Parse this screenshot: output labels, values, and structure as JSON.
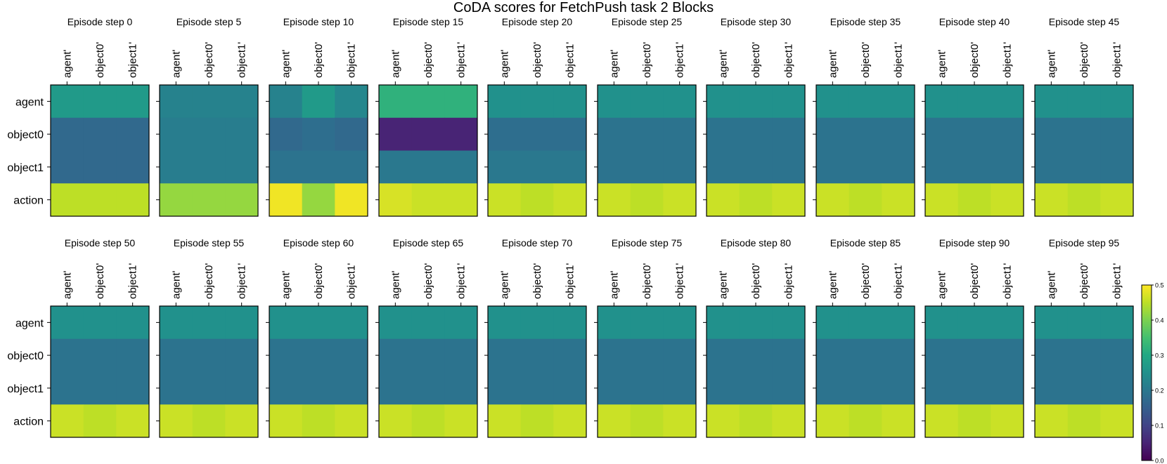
{
  "title": "CoDA scores for FetchPush task 2 Blocks",
  "colorbar": {
    "min": 0.0,
    "max": 0.5,
    "ticks": [
      "0.0",
      "0.1",
      "0.2",
      "0.3",
      "0.4",
      "0.5"
    ],
    "colormap": "viridis"
  },
  "chart_data": {
    "type": "heatmap",
    "title": "CoDA scores for FetchPush task 2 Blocks",
    "row_labels": [
      "agent",
      "object0",
      "object1",
      "action"
    ],
    "col_labels": [
      "agent'",
      "object0'",
      "object1'"
    ],
    "vmin": 0.0,
    "vmax": 0.5,
    "colormap": "viridis",
    "panels": [
      {
        "title": "Episode step 0",
        "values": [
          [
            0.27,
            0.27,
            0.27
          ],
          [
            0.17,
            0.17,
            0.17
          ],
          [
            0.17,
            0.17,
            0.17
          ],
          [
            0.45,
            0.45,
            0.45
          ]
        ]
      },
      {
        "title": "Episode step 5",
        "values": [
          [
            0.22,
            0.22,
            0.22
          ],
          [
            0.21,
            0.21,
            0.21
          ],
          [
            0.21,
            0.21,
            0.21
          ],
          [
            0.42,
            0.42,
            0.42
          ]
        ]
      },
      {
        "title": "Episode step 10",
        "values": [
          [
            0.22,
            0.27,
            0.23
          ],
          [
            0.17,
            0.18,
            0.17
          ],
          [
            0.19,
            0.19,
            0.19
          ],
          [
            0.49,
            0.42,
            0.49
          ]
        ]
      },
      {
        "title": "Episode step 15",
        "values": [
          [
            0.32,
            0.32,
            0.32
          ],
          [
            0.05,
            0.05,
            0.05
          ],
          [
            0.2,
            0.2,
            0.2
          ],
          [
            0.47,
            0.46,
            0.46
          ]
        ]
      },
      {
        "title": "Episode step 20",
        "values": [
          [
            0.25,
            0.25,
            0.25
          ],
          [
            0.18,
            0.18,
            0.18
          ],
          [
            0.2,
            0.2,
            0.2
          ],
          [
            0.46,
            0.45,
            0.46
          ]
        ]
      },
      {
        "title": "Episode step 25",
        "values": [
          [
            0.25,
            0.25,
            0.25
          ],
          [
            0.19,
            0.19,
            0.19
          ],
          [
            0.19,
            0.19,
            0.19
          ],
          [
            0.46,
            0.45,
            0.46
          ]
        ]
      },
      {
        "title": "Episode step 30",
        "values": [
          [
            0.25,
            0.25,
            0.25
          ],
          [
            0.19,
            0.19,
            0.19
          ],
          [
            0.19,
            0.19,
            0.19
          ],
          [
            0.46,
            0.45,
            0.46
          ]
        ]
      },
      {
        "title": "Episode step 35",
        "values": [
          [
            0.25,
            0.25,
            0.25
          ],
          [
            0.19,
            0.19,
            0.19
          ],
          [
            0.19,
            0.19,
            0.19
          ],
          [
            0.46,
            0.45,
            0.46
          ]
        ]
      },
      {
        "title": "Episode step 40",
        "values": [
          [
            0.25,
            0.25,
            0.25
          ],
          [
            0.19,
            0.19,
            0.19
          ],
          [
            0.19,
            0.19,
            0.19
          ],
          [
            0.46,
            0.45,
            0.46
          ]
        ]
      },
      {
        "title": "Episode step 45",
        "values": [
          [
            0.25,
            0.25,
            0.25
          ],
          [
            0.19,
            0.19,
            0.19
          ],
          [
            0.19,
            0.19,
            0.19
          ],
          [
            0.46,
            0.45,
            0.46
          ]
        ]
      },
      {
        "title": "Episode step 50",
        "values": [
          [
            0.25,
            0.25,
            0.25
          ],
          [
            0.19,
            0.19,
            0.19
          ],
          [
            0.19,
            0.19,
            0.19
          ],
          [
            0.46,
            0.45,
            0.46
          ]
        ]
      },
      {
        "title": "Episode step 55",
        "values": [
          [
            0.25,
            0.25,
            0.25
          ],
          [
            0.19,
            0.19,
            0.19
          ],
          [
            0.19,
            0.19,
            0.19
          ],
          [
            0.46,
            0.45,
            0.46
          ]
        ]
      },
      {
        "title": "Episode step 60",
        "values": [
          [
            0.25,
            0.25,
            0.25
          ],
          [
            0.19,
            0.19,
            0.19
          ],
          [
            0.19,
            0.19,
            0.19
          ],
          [
            0.46,
            0.45,
            0.46
          ]
        ]
      },
      {
        "title": "Episode step 65",
        "values": [
          [
            0.25,
            0.25,
            0.25
          ],
          [
            0.19,
            0.19,
            0.19
          ],
          [
            0.19,
            0.19,
            0.19
          ],
          [
            0.46,
            0.45,
            0.46
          ]
        ]
      },
      {
        "title": "Episode step 70",
        "values": [
          [
            0.25,
            0.25,
            0.25
          ],
          [
            0.19,
            0.19,
            0.19
          ],
          [
            0.19,
            0.19,
            0.19
          ],
          [
            0.46,
            0.45,
            0.46
          ]
        ]
      },
      {
        "title": "Episode step 75",
        "values": [
          [
            0.25,
            0.25,
            0.25
          ],
          [
            0.19,
            0.19,
            0.19
          ],
          [
            0.19,
            0.19,
            0.19
          ],
          [
            0.46,
            0.45,
            0.46
          ]
        ]
      },
      {
        "title": "Episode step 80",
        "values": [
          [
            0.25,
            0.25,
            0.25
          ],
          [
            0.19,
            0.19,
            0.19
          ],
          [
            0.19,
            0.19,
            0.19
          ],
          [
            0.46,
            0.45,
            0.46
          ]
        ]
      },
      {
        "title": "Episode step 85",
        "values": [
          [
            0.25,
            0.25,
            0.25
          ],
          [
            0.19,
            0.19,
            0.19
          ],
          [
            0.19,
            0.19,
            0.19
          ],
          [
            0.46,
            0.45,
            0.46
          ]
        ]
      },
      {
        "title": "Episode step 90",
        "values": [
          [
            0.25,
            0.25,
            0.25
          ],
          [
            0.19,
            0.19,
            0.19
          ],
          [
            0.19,
            0.19,
            0.19
          ],
          [
            0.46,
            0.45,
            0.46
          ]
        ]
      },
      {
        "title": "Episode step 95",
        "values": [
          [
            0.25,
            0.25,
            0.25
          ],
          [
            0.19,
            0.19,
            0.19
          ],
          [
            0.19,
            0.19,
            0.19
          ],
          [
            0.46,
            0.45,
            0.46
          ]
        ]
      }
    ]
  }
}
